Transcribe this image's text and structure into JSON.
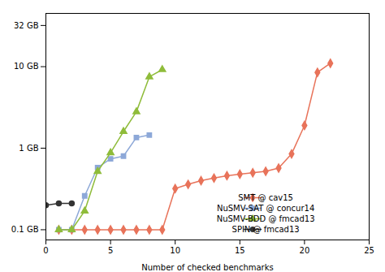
{
  "chart_data": {
    "type": "line",
    "xlabel": "Number of checked benchmarks",
    "xlim": [
      0,
      25
    ],
    "xticks": [
      0,
      5,
      10,
      15,
      20,
      25
    ],
    "ylim": [
      0.075,
      45
    ],
    "yticks": [
      {
        "value": 0.1,
        "label": "0.1 GB"
      },
      {
        "value": 1.0,
        "label": "1 GB"
      },
      {
        "value": 10.0,
        "label": "10 GB"
      },
      {
        "value": 32.0,
        "label": "32 GB"
      }
    ],
    "log": "y",
    "grid": false,
    "legend": "lower right",
    "series": [
      {
        "name": "SMT @ cav15",
        "color": "#e8735a",
        "marker": "diamond",
        "x": [
          1,
          2,
          3,
          4,
          5,
          6,
          7,
          8,
          9,
          10,
          11,
          12,
          13,
          14,
          15,
          16,
          17,
          18,
          19,
          20,
          21,
          22
        ],
        "values": [
          0.1,
          0.1,
          0.1,
          0.1,
          0.1,
          0.1,
          0.1,
          0.1,
          0.1,
          0.32,
          0.36,
          0.4,
          0.43,
          0.46,
          0.48,
          0.5,
          0.52,
          0.57,
          0.85,
          1.9,
          8.5,
          11.0
        ]
      },
      {
        "name": "NuSMV-SAT @ concur14",
        "color": "#8da8d8",
        "marker": "square",
        "x": [
          1,
          2,
          3,
          4,
          5,
          6,
          7,
          8
        ],
        "values": [
          0.1,
          0.1,
          0.26,
          0.58,
          0.74,
          0.8,
          1.35,
          1.45
        ]
      },
      {
        "name": "NuSMV-BDD @ fmcad13",
        "color": "#8fbc3a",
        "marker": "triangle",
        "x": [
          1,
          2,
          3,
          4,
          5,
          6,
          7,
          8,
          9
        ],
        "values": [
          0.1,
          0.1,
          0.17,
          0.52,
          0.88,
          1.6,
          2.8,
          7.5,
          9.2
        ]
      },
      {
        "name": "SPIN @ fmcad13",
        "color": "#333333",
        "marker": "circle",
        "x": [
          0,
          1,
          2
        ],
        "values": [
          0.2,
          0.21,
          0.21
        ]
      }
    ]
  }
}
